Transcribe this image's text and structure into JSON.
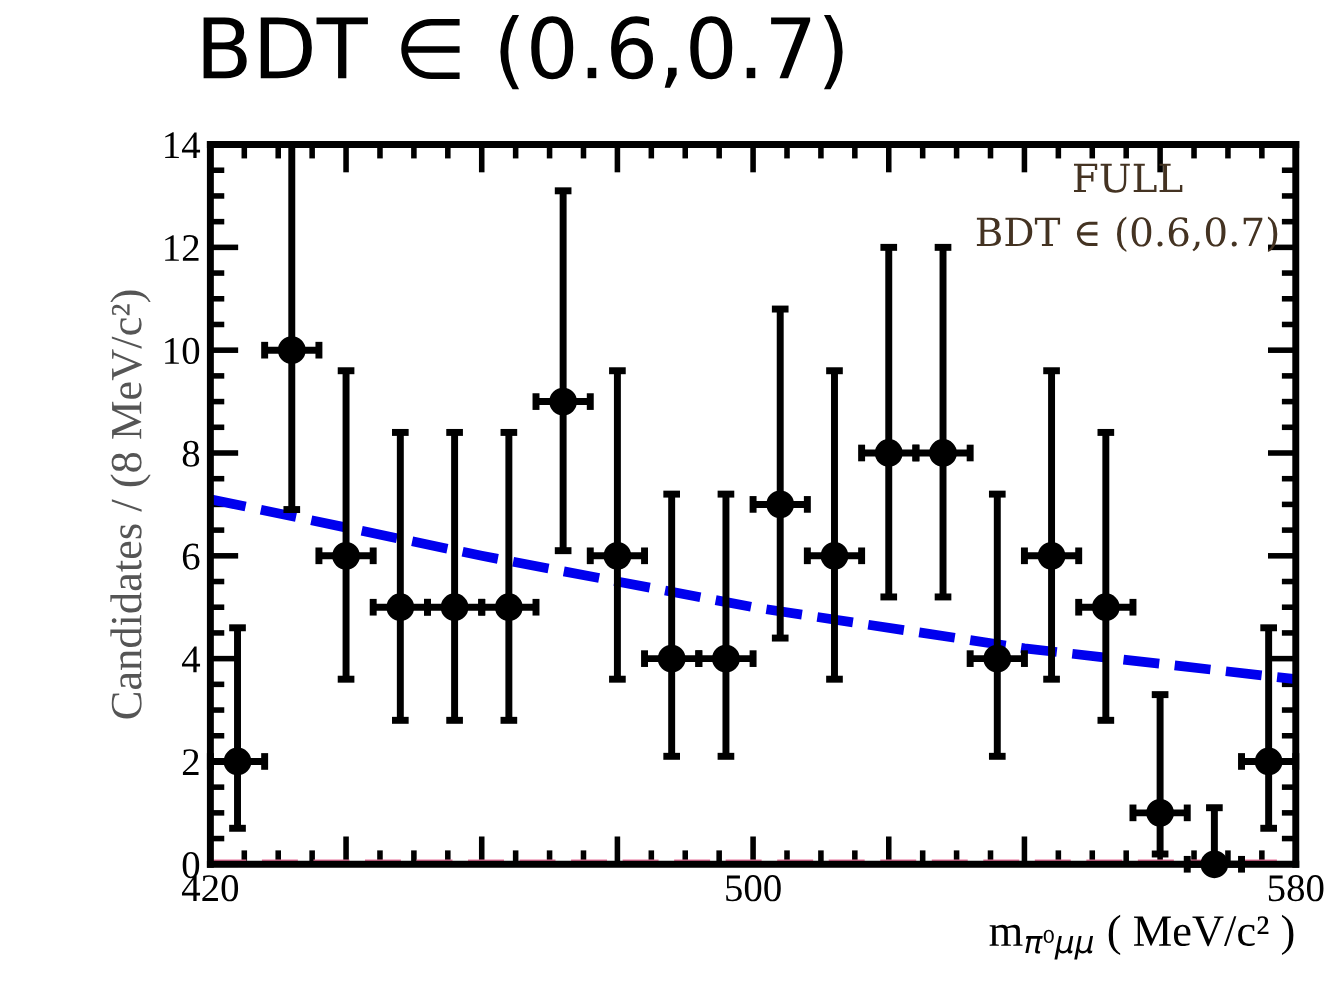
{
  "chart_data": {
    "type": "scatter",
    "title": "BDT ∈ (0.6,0.7)",
    "xlabel": "m$_{π⁰μμ}$ ( MeV/c² )",
    "ylabel": "Candidates / (8 MeV/c²)",
    "annotations": [
      "FULL",
      "BDT ∈ (0.6,0.7)"
    ],
    "xlim": [
      420,
      580
    ],
    "xticks": [
      420,
      {
        "value": 440,
        "label": null
      },
      {
        "value": 460,
        "label": null
      },
      {
        "value": 480,
        "label": null
      },
      500,
      {
        "value": 520,
        "label": null
      },
      {
        "value": 540,
        "label": null
      },
      {
        "value": 560,
        "label": null
      },
      580
    ],
    "ylim": [
      0,
      14
    ],
    "yticks": [
      0,
      2,
      4,
      6,
      8,
      10,
      12,
      14
    ],
    "grid": false,
    "legend": false,
    "marker": "circle",
    "series": [
      {
        "color": "#000000",
        "x": [
          424,
          432,
          440,
          448,
          456,
          464,
          472,
          480,
          488,
          496,
          504,
          512,
          520,
          528,
          536,
          544,
          552,
          560,
          568,
          576
        ],
        "values": [
          2,
          10,
          6,
          5,
          5,
          5,
          9,
          6,
          4,
          4,
          7,
          6,
          8,
          8,
          4,
          6,
          5,
          1,
          0,
          2
        ],
        "errors": [
          [
            0.7,
            4.6
          ],
          [
            6.9,
            14
          ],
          [
            3.6,
            9.6
          ],
          [
            2.8,
            8.4
          ],
          [
            2.8,
            8.4
          ],
          [
            2.8,
            8.4
          ],
          [
            6.1,
            13.1
          ],
          [
            3.6,
            9.6
          ],
          [
            2.1,
            7.2
          ],
          [
            2.1,
            7.2
          ],
          [
            4.4,
            10.8
          ],
          [
            3.6,
            9.6
          ],
          [
            5.2,
            12
          ],
          [
            5.2,
            12
          ],
          [
            2.1,
            7.2
          ],
          [
            3.6,
            9.6
          ],
          [
            2.8,
            8.4
          ],
          [
            0.2,
            3.3
          ],
          [
            0,
            1.1
          ],
          [
            0.7,
            4.6
          ]
        ],
        "xerrors": [
          4,
          4,
          4,
          4,
          4,
          4,
          4,
          4,
          4,
          4,
          4,
          4,
          4,
          4,
          4,
          4,
          4,
          4,
          4,
          4
        ]
      },
      {
        "type": "line",
        "color": "#0000ee",
        "line_style": "dashed",
        "marker": "none",
        "x": [
          420,
          460,
          500,
          540,
          580
        ],
        "values": [
          7.1,
          6.0,
          5.0,
          4.2,
          3.6
        ]
      },
      {
        "type": "line",
        "color": "#e8709a",
        "line_style": "dashed",
        "marker": "none",
        "x": [
          420,
          580
        ],
        "values": [
          0,
          0
        ]
      }
    ]
  }
}
